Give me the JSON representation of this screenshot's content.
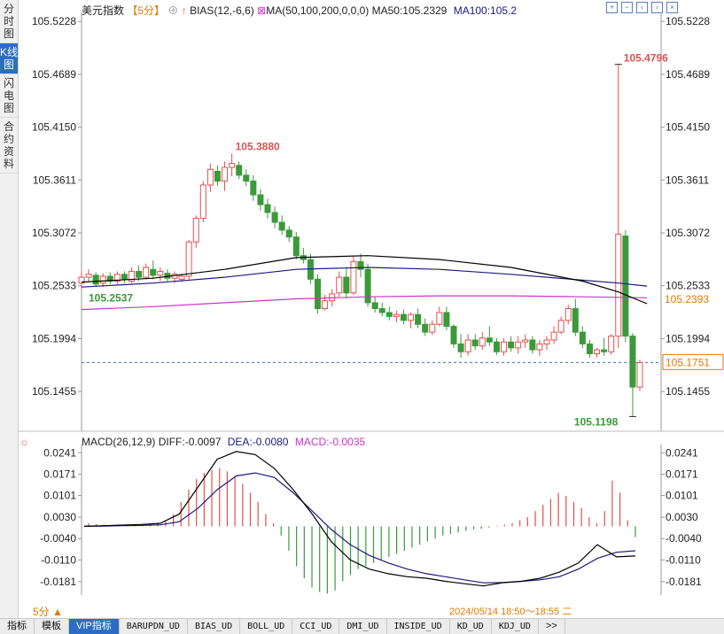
{
  "sidebar": {
    "tabs": [
      {
        "label": "分时图",
        "active": false
      },
      {
        "label": "K线图",
        "active": true
      },
      {
        "label": "闪电图",
        "active": false
      },
      {
        "label": "合约资料",
        "active": false
      }
    ]
  },
  "header": {
    "instrument": "美元指数",
    "period": "【5分】",
    "bias_label": "BIAS(12,-6,6)",
    "ma_label": "MA(50,100,200,0,0,0)",
    "ma50_label": "MA50:105.2329",
    "ma100_label": "MA100:105.2"
  },
  "macd_header": {
    "label": "MACD(26,12,9)",
    "diff_label": "DIFF:-0.0097",
    "dea_label": "DEA:-0.0080",
    "macd_label": "MACD:-0.0035"
  },
  "colors": {
    "up": "#e05050",
    "down": "#3a9a3a",
    "ma50": "#000000",
    "ma100": "#1a1a80",
    "ma200": "#cc33cc",
    "accent": "#e07a00",
    "vip": "#2b6cc4"
  },
  "chart_data": [
    {
      "type": "candlestick",
      "y_ticks": [
        "105.5228",
        "105.4689",
        "105.4150",
        "105.3611",
        "105.3072",
        "105.2533",
        "105.1994",
        "105.1455"
      ],
      "ylim": [
        105.105,
        105.532
      ],
      "annotations": {
        "high": "105.4796",
        "high_left": "105.3880",
        "low": "105.1198",
        "low_left": "105.2537"
      },
      "right_labels": {
        "ma_value": "105.2393",
        "last_price": "105.1751"
      },
      "last_price": 105.1751,
      "candles": [
        [
          105.256,
          105.268,
          105.25,
          105.262
        ],
        [
          105.262,
          105.27,
          105.257,
          105.265
        ],
        [
          105.264,
          105.267,
          105.253,
          105.255
        ],
        [
          105.256,
          105.266,
          105.252,
          105.263
        ],
        [
          105.263,
          105.267,
          105.255,
          105.258
        ],
        [
          105.258,
          105.268,
          105.255,
          105.265
        ],
        [
          105.265,
          105.268,
          105.256,
          105.26
        ],
        [
          105.258,
          105.272,
          105.256,
          105.268
        ],
        [
          105.268,
          105.274,
          105.258,
          105.262
        ],
        [
          105.262,
          105.276,
          105.26,
          105.272
        ],
        [
          105.27,
          105.279,
          105.26,
          105.264
        ],
        [
          105.264,
          105.272,
          105.258,
          105.268
        ],
        [
          105.266,
          105.27,
          105.258,
          105.261
        ],
        [
          105.261,
          105.268,
          105.256,
          105.265
        ],
        [
          105.26,
          105.266,
          105.257,
          105.263
        ],
        [
          105.263,
          105.3,
          105.26,
          105.298
        ],
        [
          105.298,
          105.325,
          105.292,
          105.322
        ],
        [
          105.322,
          105.36,
          105.318,
          105.356
        ],
        [
          105.356,
          105.378,
          105.349,
          105.372
        ],
        [
          105.37,
          105.376,
          105.355,
          105.36
        ],
        [
          105.36,
          105.38,
          105.35,
          105.374
        ],
        [
          105.374,
          105.388,
          105.365,
          105.378
        ],
        [
          105.376,
          105.38,
          105.362,
          105.366
        ],
        [
          105.366,
          105.372,
          105.355,
          105.36
        ],
        [
          105.36,
          105.366,
          105.34,
          105.346
        ],
        [
          105.346,
          105.352,
          105.33,
          105.336
        ],
        [
          105.336,
          105.342,
          105.322,
          105.328
        ],
        [
          105.328,
          105.334,
          105.312,
          105.318
        ],
        [
          105.318,
          105.325,
          105.305,
          105.31
        ],
        [
          105.31,
          105.314,
          105.298,
          105.303
        ],
        [
          105.303,
          105.308,
          105.28,
          105.284
        ],
        [
          105.284,
          105.292,
          105.276,
          105.28
        ],
        [
          105.28,
          105.286,
          105.255,
          105.26
        ],
        [
          105.26,
          105.265,
          105.225,
          105.23
        ],
        [
          105.23,
          105.244,
          105.228,
          105.238
        ],
        [
          105.238,
          105.25,
          105.232,
          105.245
        ],
        [
          105.246,
          105.268,
          105.242,
          105.262
        ],
        [
          105.262,
          105.272,
          105.24,
          105.246
        ],
        [
          105.246,
          105.284,
          105.244,
          105.278
        ],
        [
          105.278,
          105.286,
          105.262,
          105.27
        ],
        [
          105.27,
          105.276,
          105.232,
          105.236
        ],
        [
          105.236,
          105.242,
          105.226,
          105.23
        ],
        [
          105.23,
          105.236,
          105.222,
          105.226
        ],
        [
          105.226,
          105.232,
          105.218,
          105.222
        ],
        [
          105.222,
          105.228,
          105.216,
          105.224
        ],
        [
          105.224,
          105.229,
          105.214,
          105.218
        ],
        [
          105.218,
          105.226,
          105.21,
          105.224
        ],
        [
          105.224,
          105.23,
          105.21,
          105.214
        ],
        [
          105.214,
          105.22,
          105.202,
          105.206
        ],
        [
          105.206,
          105.218,
          105.203,
          105.214
        ],
        [
          105.214,
          105.232,
          105.212,
          105.226
        ],
        [
          105.226,
          105.232,
          105.208,
          105.212
        ],
        [
          105.212,
          105.214,
          105.19,
          105.194
        ],
        [
          105.194,
          105.204,
          105.18,
          105.186
        ],
        [
          105.186,
          105.204,
          105.182,
          105.198
        ],
        [
          105.198,
          105.204,
          105.188,
          105.192
        ],
        [
          105.192,
          105.206,
          105.188,
          105.2
        ],
        [
          105.2,
          105.212,
          105.192,
          105.196
        ],
        [
          105.196,
          105.2,
          105.183,
          105.186
        ],
        [
          105.186,
          105.2,
          105.182,
          105.196
        ],
        [
          105.196,
          105.202,
          105.186,
          105.19
        ],
        [
          105.19,
          105.202,
          105.184,
          105.196
        ],
        [
          105.196,
          105.204,
          105.19,
          105.198
        ],
        [
          105.198,
          105.202,
          105.184,
          105.188
        ],
        [
          105.188,
          105.198,
          105.182,
          105.194
        ],
        [
          105.194,
          105.202,
          105.188,
          105.198
        ],
        [
          105.198,
          105.212,
          105.194,
          105.206
        ],
        [
          105.206,
          105.222,
          105.204,
          105.218
        ],
        [
          105.218,
          105.234,
          105.214,
          105.23
        ],
        [
          105.23,
          105.24,
          105.202,
          105.206
        ],
        [
          105.206,
          105.212,
          105.19,
          105.194
        ],
        [
          105.194,
          105.198,
          105.18,
          105.184
        ],
        [
          105.184,
          105.19,
          105.18,
          105.188
        ],
        [
          105.188,
          105.2,
          105.182,
          105.186
        ],
        [
          105.186,
          105.204,
          105.183,
          105.202
        ],
        [
          105.202,
          105.479,
          105.19,
          105.306
        ],
        [
          105.304,
          105.31,
          105.196,
          105.202
        ],
        [
          105.202,
          105.205,
          105.12,
          105.15
        ],
        [
          105.15,
          105.178,
          105.146,
          105.175
        ]
      ],
      "ma50": [
        [
          0,
          105.257
        ],
        [
          10,
          105.261
        ],
        [
          20,
          105.27
        ],
        [
          30,
          105.282
        ],
        [
          40,
          105.284
        ],
        [
          50,
          105.28
        ],
        [
          60,
          105.272
        ],
        [
          70,
          105.258
        ],
        [
          75,
          105.247
        ],
        [
          79,
          105.235
        ]
      ],
      "ma100": [
        [
          0,
          105.252
        ],
        [
          10,
          105.256
        ],
        [
          20,
          105.262
        ],
        [
          30,
          105.27
        ],
        [
          40,
          105.272
        ],
        [
          50,
          105.27
        ],
        [
          60,
          105.265
        ],
        [
          70,
          105.259
        ],
        [
          75,
          105.256
        ],
        [
          79,
          105.253
        ]
      ],
      "ma200": [
        [
          0,
          105.229
        ],
        [
          10,
          105.232
        ],
        [
          20,
          105.236
        ],
        [
          30,
          105.24
        ],
        [
          40,
          105.242
        ],
        [
          50,
          105.243
        ],
        [
          60,
          105.243
        ],
        [
          70,
          105.242
        ],
        [
          79,
          105.241
        ]
      ]
    },
    {
      "type": "macd",
      "y_ticks": [
        "0.0241",
        "0.0171",
        "0.0101",
        "0.0030",
        "-0.0040",
        "-0.0110",
        "-0.0181"
      ],
      "ylim": [
        -0.0225,
        0.0268
      ],
      "diff": [
        0,
        0.0002,
        0.0004,
        0.0006,
        0.001,
        0.004,
        0.013,
        0.022,
        0.0245,
        0.0235,
        0.019,
        0.012,
        0.004,
        -0.005,
        -0.011,
        -0.014,
        -0.0155,
        -0.0165,
        -0.017,
        -0.018,
        -0.0188,
        -0.0195,
        -0.0185,
        -0.018,
        -0.017,
        -0.015,
        -0.012,
        -0.006,
        -0.01,
        -0.0097
      ],
      "dea": [
        0,
        0.0001,
        0.0002,
        0.0003,
        0.0005,
        0.0015,
        0.006,
        0.012,
        0.0165,
        0.0175,
        0.016,
        0.011,
        0.005,
        -0.001,
        -0.006,
        -0.0095,
        -0.012,
        -0.014,
        -0.0155,
        -0.0165,
        -0.0175,
        -0.0185,
        -0.0184,
        -0.018,
        -0.0175,
        -0.0165,
        -0.014,
        -0.0105,
        -0.0085,
        -0.008
      ],
      "hist": [
        0.001,
        0.0008,
        0.0006,
        0.0004,
        0.0003,
        0.0002,
        0.0004,
        0.0006,
        0.0008,
        0.0012,
        0.002,
        0.004,
        0.008,
        0.012,
        0.0155,
        0.0175,
        0.0185,
        0.019,
        0.018,
        0.0165,
        0.014,
        0.011,
        0.008,
        0.004,
        0.001,
        -0.003,
        -0.008,
        -0.013,
        -0.017,
        -0.02,
        -0.0215,
        -0.022,
        -0.021,
        -0.018,
        -0.016,
        -0.014,
        -0.013,
        -0.012,
        -0.011,
        -0.01,
        -0.009,
        -0.008,
        -0.007,
        -0.006,
        -0.005,
        -0.004,
        -0.003,
        -0.0025,
        -0.002,
        -0.0015,
        -0.001,
        -0.0008,
        -0.0004,
        0.0002,
        0.0006,
        0.001,
        0.002,
        0.003,
        0.005,
        0.007,
        0.009,
        0.011,
        0.01,
        0.008,
        0.006,
        0.003,
        0.001,
        0.005,
        0.015,
        0.011,
        0.002,
        -0.0035
      ]
    }
  ],
  "footer": {
    "period_badge": "5分 ▲",
    "timestamp": "2024/05/14 18:50～18:55 二",
    "tabs": [
      "指标",
      "模板",
      "VIP指标",
      "BARUPDN_UD",
      "BIAS_UD",
      "BOLL_UD",
      "CCI_UD",
      "DMI_UD",
      "INSIDE_UD",
      "KD_UD",
      "KDJ_UD",
      ">>"
    ]
  }
}
